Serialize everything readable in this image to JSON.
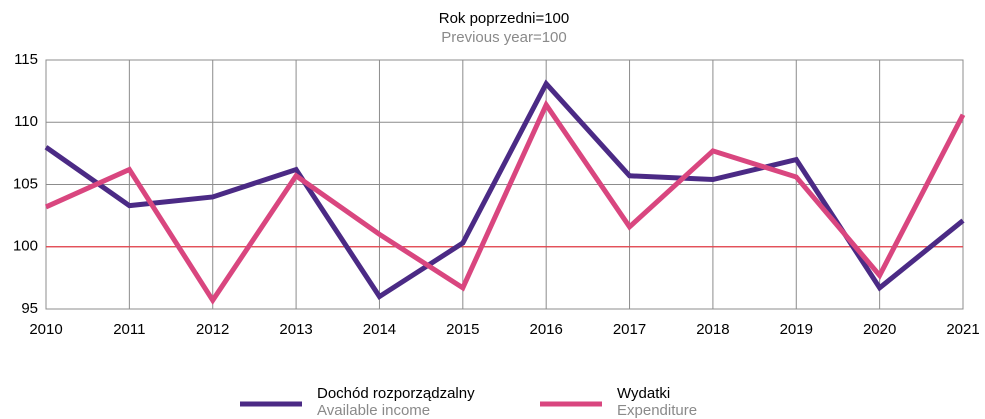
{
  "chart_data": {
    "type": "line",
    "title": "Rok poprzedni=100",
    "subtitle": "Previous year=100",
    "categories": [
      "2010",
      "2011",
      "2012",
      "2013",
      "2014",
      "2015",
      "2016",
      "2017",
      "2018",
      "2019",
      "2020",
      "2021"
    ],
    "series": [
      {
        "name": "Dochód rozporządzalny",
        "name_en": "Available income",
        "color": "#4b2a85",
        "values": [
          108.0,
          103.3,
          104.0,
          106.2,
          96.0,
          100.3,
          113.1,
          105.7,
          105.4,
          107.0,
          96.7,
          102.1
        ]
      },
      {
        "name": "Wydatki",
        "name_en": "Expenditure",
        "color": "#d9467f",
        "values": [
          103.2,
          106.2,
          95.7,
          105.7,
          101.0,
          96.7,
          111.4,
          101.6,
          107.7,
          105.6,
          97.7,
          110.6
        ]
      }
    ],
    "ylim": [
      95,
      115
    ],
    "yticks": [
      95,
      100,
      105,
      110,
      115
    ],
    "reference_line": {
      "value": 100,
      "color": "#e8404a"
    },
    "grid": true,
    "legend": "bottom"
  }
}
